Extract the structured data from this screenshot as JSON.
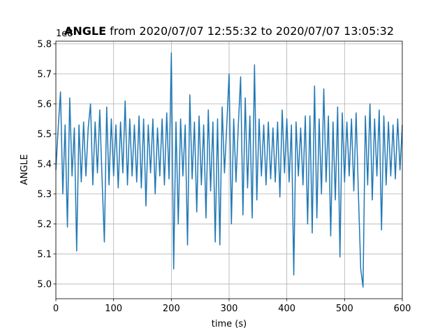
{
  "chart_data": {
    "type": "line",
    "title_bold": "ANGLE",
    "title_rest": "from 2020/07/07 12:55:32 to 2020/07/07 13:05:32",
    "y_offset_label": "1e8",
    "xlabel": "time (s)",
    "ylabel": "ANGLE",
    "color": "#1f77b4",
    "grid": true,
    "xlim": [
      0,
      600
    ],
    "xticks": [
      0,
      100,
      200,
      300,
      400,
      500,
      600
    ],
    "ylim": [
      4.951,
      5.809
    ],
    "yticks": [
      {
        "value": 5,
        "label": "5.0"
      },
      5.1,
      5.2,
      5.3,
      5.4,
      5.5,
      5.6,
      5.7,
      5.8
    ],
    "x": [
      0,
      4,
      8,
      12,
      16,
      20,
      24,
      28,
      32,
      36,
      40,
      44,
      48,
      52,
      56,
      60,
      64,
      68,
      72,
      76,
      80,
      84,
      88,
      92,
      96,
      100,
      104,
      108,
      112,
      116,
      120,
      124,
      128,
      132,
      136,
      140,
      144,
      148,
      152,
      156,
      160,
      164,
      168,
      172,
      176,
      180,
      184,
      188,
      192,
      196,
      200,
      204,
      208,
      212,
      216,
      220,
      224,
      228,
      232,
      236,
      240,
      244,
      248,
      252,
      256,
      260,
      264,
      268,
      272,
      276,
      280,
      284,
      288,
      292,
      296,
      300,
      304,
      308,
      312,
      316,
      320,
      324,
      328,
      332,
      336,
      340,
      344,
      348,
      352,
      356,
      360,
      364,
      368,
      372,
      376,
      380,
      384,
      388,
      392,
      396,
      400,
      404,
      408,
      412,
      416,
      420,
      424,
      428,
      432,
      436,
      440,
      444,
      448,
      452,
      456,
      460,
      464,
      468,
      472,
      476,
      480,
      484,
      488,
      492,
      496,
      500,
      504,
      508,
      512,
      516,
      520,
      524,
      528,
      532,
      536,
      540,
      544,
      548,
      552,
      556,
      560,
      564,
      568,
      572,
      576,
      580,
      584,
      588,
      592,
      596,
      600
    ],
    "values": [
      5.38,
      5.52,
      5.64,
      5.3,
      5.53,
      5.19,
      5.62,
      5.36,
      5.52,
      5.11,
      5.53,
      5.34,
      5.54,
      5.36,
      5.52,
      5.6,
      5.33,
      5.54,
      5.37,
      5.58,
      5.35,
      5.14,
      5.59,
      5.33,
      5.55,
      5.36,
      5.53,
      5.32,
      5.54,
      5.37,
      5.61,
      5.33,
      5.55,
      5.36,
      5.53,
      5.34,
      5.56,
      5.32,
      5.55,
      5.26,
      5.53,
      5.37,
      5.55,
      5.3,
      5.52,
      5.36,
      5.55,
      5.33,
      5.57,
      5.35,
      5.77,
      5.05,
      5.54,
      5.2,
      5.55,
      5.36,
      5.53,
      5.13,
      5.63,
      5.35,
      5.54,
      5.24,
      5.56,
      5.33,
      5.53,
      5.22,
      5.58,
      5.31,
      5.54,
      5.14,
      5.55,
      5.13,
      5.59,
      5.37,
      5.53,
      5.7,
      5.2,
      5.55,
      5.34,
      5.53,
      5.69,
      5.23,
      5.62,
      5.32,
      5.56,
      5.22,
      5.73,
      5.28,
      5.55,
      5.36,
      5.53,
      5.33,
      5.54,
      5.35,
      5.52,
      5.34,
      5.54,
      5.29,
      5.58,
      5.37,
      5.55,
      5.34,
      5.53,
      5.03,
      5.54,
      5.36,
      5.52,
      5.33,
      5.56,
      5.2,
      5.56,
      5.17,
      5.66,
      5.22,
      5.55,
      5.3,
      5.65,
      5.34,
      5.56,
      5.16,
      5.54,
      5.28,
      5.59,
      5.09,
      5.57,
      5.34,
      5.54,
      5.36,
      5.55,
      5.31,
      5.57,
      5.3,
      5.05,
      4.99,
      5.56,
      5.33,
      5.6,
      5.28,
      5.55,
      5.36,
      5.58,
      5.18,
      5.56,
      5.33,
      5.54,
      5.36,
      5.53,
      5.35,
      5.55,
      5.38,
      5.53
    ]
  }
}
